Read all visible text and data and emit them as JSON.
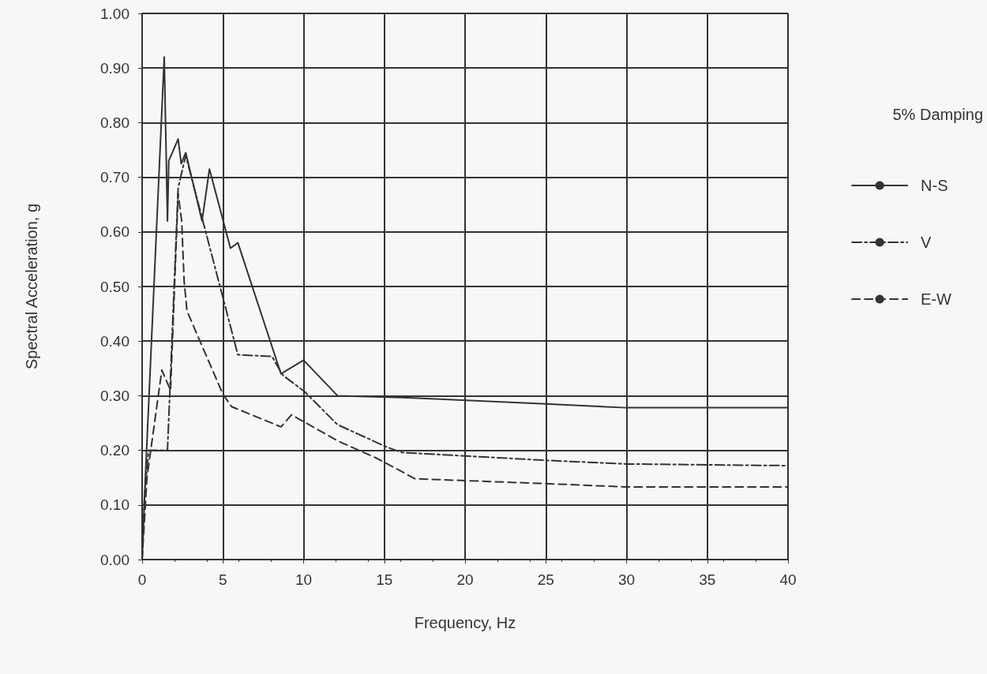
{
  "chart_data": {
    "type": "line",
    "xlabel": "Frequency, Hz",
    "ylabel": "Spectral Acceleration, g",
    "legend_title": "5% Damping",
    "legend": "right",
    "grid": true,
    "marker": "none",
    "xlim": [
      0,
      40
    ],
    "xticks": [
      0,
      5,
      10,
      15,
      20,
      25,
      30,
      35,
      40
    ],
    "ylim": [
      0,
      1
    ],
    "yticks": [
      {
        "value": 0,
        "label": "0.00"
      },
      {
        "value": 0.1,
        "label": "0.10"
      },
      {
        "value": 0.2,
        "label": "0.20"
      },
      {
        "value": 0.3,
        "label": "0.30"
      },
      {
        "value": 0.4,
        "label": "0.40"
      },
      {
        "value": 0.5,
        "label": "0.50"
      },
      {
        "value": 0.6,
        "label": "0.60"
      },
      {
        "value": 0.7,
        "label": "0.70"
      },
      {
        "value": 0.8,
        "label": "0.80"
      },
      {
        "value": 0.9,
        "label": "0.90"
      },
      {
        "value": 1,
        "label": "1.00"
      }
    ],
    "series": [
      {
        "name": "N-S",
        "color": "#333333",
        "line_style": "solid",
        "x": [
          0,
          0.2,
          1.37,
          1.57,
          1.65,
          2.23,
          2.42,
          2.7,
          3.71,
          4.17,
          5.47,
          5.93,
          8.6,
          10,
          12.1,
          16.8,
          25,
          30,
          40
        ],
        "values": [
          0,
          0.15,
          0.92,
          0.62,
          0.73,
          0.77,
          0.725,
          0.745,
          0.62,
          0.715,
          0.57,
          0.58,
          0.34,
          0.365,
          0.3,
          0.296,
          0.285,
          0.278,
          0.278
        ]
      },
      {
        "name": "V",
        "color": "#333333",
        "line_style": "dashdot",
        "x": [
          0,
          0.15,
          0.4,
          1.57,
          2.23,
          2.7,
          5.93,
          8.04,
          8.7,
          10.08,
          12.1,
          15.15,
          16.1,
          24.8,
          30,
          40
        ],
        "values": [
          0,
          0.12,
          0.2,
          0.2,
          0.68,
          0.74,
          0.375,
          0.372,
          0.338,
          0.307,
          0.247,
          0.206,
          0.196,
          0.182,
          0.175,
          0.172
        ]
      },
      {
        "name": "E-W",
        "color": "#333333",
        "line_style": "dashed",
        "x": [
          0,
          0.3,
          1.22,
          1.76,
          2.23,
          2.45,
          2.6,
          2.78,
          5,
          5.54,
          8.6,
          9.25,
          12.2,
          14.5,
          16.9,
          25,
          30,
          40
        ],
        "values": [
          0,
          0.15,
          0.347,
          0.31,
          0.67,
          0.62,
          0.51,
          0.455,
          0.303,
          0.28,
          0.243,
          0.265,
          0.216,
          0.186,
          0.148,
          0.139,
          0.133,
          0.133
        ]
      }
    ]
  }
}
